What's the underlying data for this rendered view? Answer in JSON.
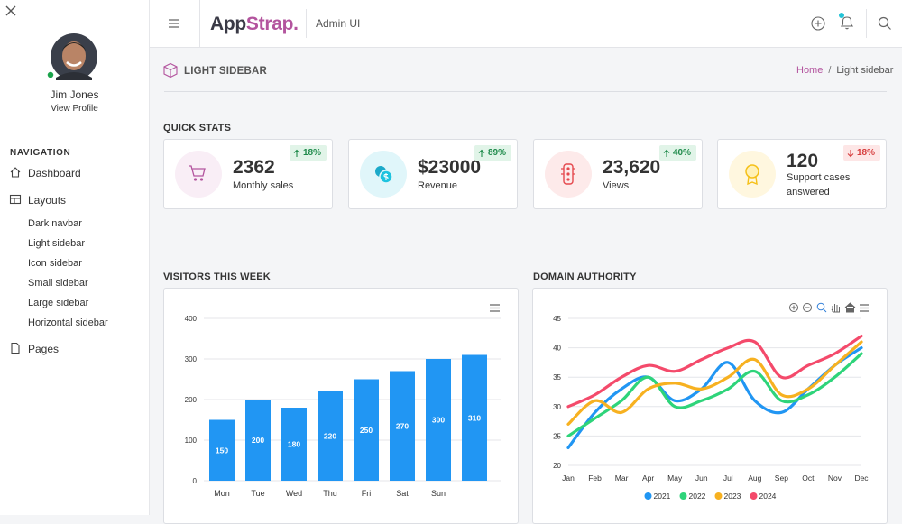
{
  "sidebar": {
    "user": {
      "name": "Jim Jones",
      "link": "View Profile"
    },
    "nav_heading": "NAVIGATION",
    "items": [
      {
        "label": "Dashboard"
      },
      {
        "label": "Layouts",
        "children": [
          "Dark navbar",
          "Light sidebar",
          "Icon sidebar",
          "Small sidebar",
          "Large sidebar",
          "Horizontal sidebar"
        ]
      },
      {
        "label": "Pages"
      }
    ]
  },
  "header": {
    "brand": [
      "App",
      "Strap."
    ],
    "subtitle": "Admin UI"
  },
  "page": {
    "title": "LIGHT SIDEBAR",
    "breadcrumb": [
      "Home",
      "/",
      "Light sidebar"
    ]
  },
  "quick_stats": {
    "heading": "QUICK STATS",
    "cards": [
      {
        "value": "2362",
        "label": "Monthly sales",
        "change": "18%",
        "trend": "up"
      },
      {
        "value": "$23000",
        "label": "Revenue",
        "change": "89%",
        "trend": "up"
      },
      {
        "value": "23,620",
        "label": "Views",
        "change": "40%",
        "trend": "up"
      },
      {
        "value": "120",
        "label": "Support cases answered",
        "change": "18%",
        "trend": "down"
      }
    ]
  },
  "chart_data": [
    {
      "type": "bar",
      "title": "VISITORS THIS WEEK",
      "categories": [
        "Mon",
        "Tue",
        "Wed",
        "Thu",
        "Fri",
        "Sat",
        "Sun",
        null
      ],
      "values": [
        150,
        200,
        180,
        220,
        250,
        270,
        300,
        310
      ],
      "color": "#2196f3",
      "ylim": [
        0,
        400
      ],
      "yticks": [
        0,
        100,
        200,
        300,
        400
      ],
      "grid": true
    },
    {
      "type": "line",
      "title": "DOMAIN AUTHORITY",
      "categories": [
        "Jan",
        "Feb",
        "Mar",
        "Apr",
        "May",
        "Jun",
        "Jul",
        "Aug",
        "Sep",
        "Oct",
        "Nov",
        "Dec"
      ],
      "series": [
        {
          "name": "2021",
          "color": "#2196f3",
          "values": [
            23,
            29,
            33,
            35,
            31,
            33,
            37.5,
            31,
            29,
            33,
            37,
            40
          ]
        },
        {
          "name": "2022",
          "color": "#2ed47a",
          "values": [
            25,
            28,
            31,
            35,
            30,
            31,
            33,
            36,
            31,
            32,
            35,
            39
          ]
        },
        {
          "name": "2023",
          "color": "#f7b120",
          "values": [
            27,
            31,
            29,
            33,
            34,
            33,
            35,
            38,
            32,
            33,
            37,
            41
          ]
        },
        {
          "name": "2024",
          "color": "#f44a6b",
          "values": [
            30,
            32,
            35,
            37,
            36,
            38,
            40,
            41,
            35,
            37,
            39,
            42
          ]
        }
      ],
      "ylim": [
        20,
        45
      ],
      "yticks": [
        20,
        25,
        30,
        35,
        40,
        45
      ],
      "grid": true,
      "legend": "bottom"
    }
  ]
}
